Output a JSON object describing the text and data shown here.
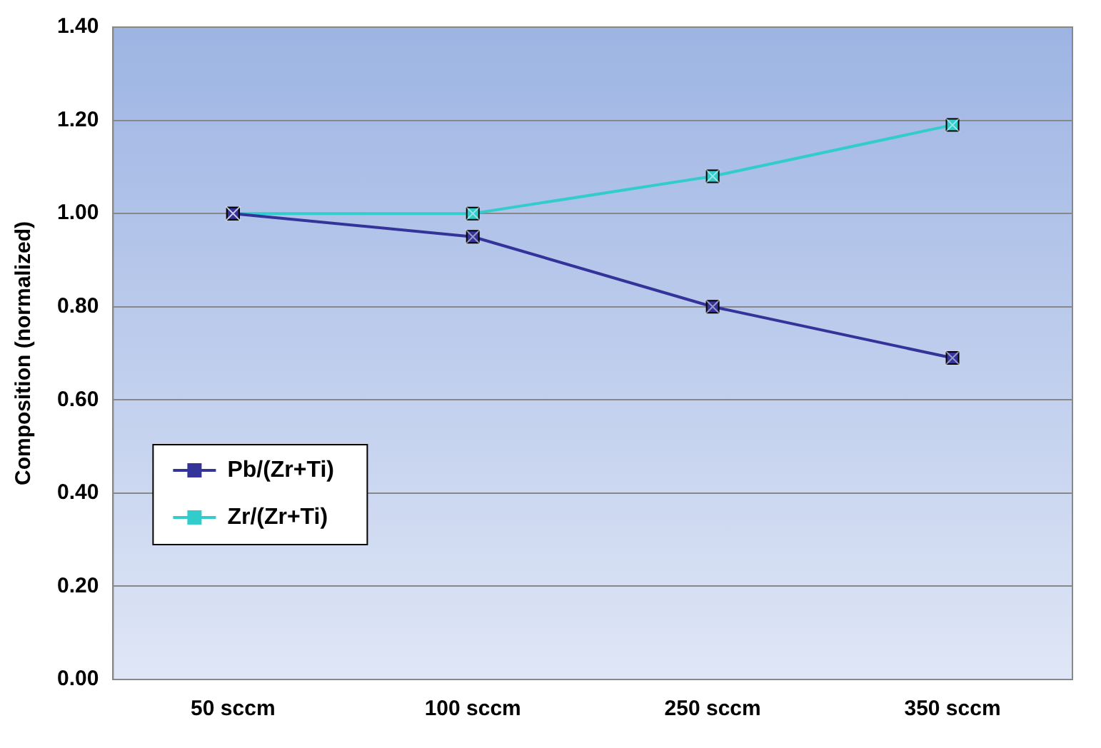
{
  "chart_data": {
    "type": "line",
    "ylabel": "Composition (normalized)",
    "categories": [
      "50 sccm",
      "100 sccm",
      "250 sccm",
      "350 sccm"
    ],
    "series": [
      {
        "name": "Pb/(Zr+Ti)",
        "color": "#333399",
        "values": [
          1.0,
          0.95,
          0.8,
          0.69
        ]
      },
      {
        "name": "Zr/(Zr+Ti)",
        "color": "#33cccc",
        "values": [
          1.0,
          1.0,
          1.08,
          1.19
        ]
      }
    ],
    "ylim": [
      0,
      1.4
    ],
    "yticks": [
      {
        "value": 0,
        "label": "0.00"
      },
      {
        "value": 0.2,
        "label": "0.20"
      },
      {
        "value": 0.4,
        "label": "0.40"
      },
      {
        "value": 0.6,
        "label": "0.60"
      },
      {
        "value": 0.8,
        "label": "0.80"
      },
      {
        "value": 1,
        "label": "1.00"
      },
      {
        "value": 1.2,
        "label": "1.20"
      },
      {
        "value": 1.4,
        "label": "1.40"
      }
    ],
    "grid": "y",
    "legend": "left",
    "marker": "square"
  }
}
